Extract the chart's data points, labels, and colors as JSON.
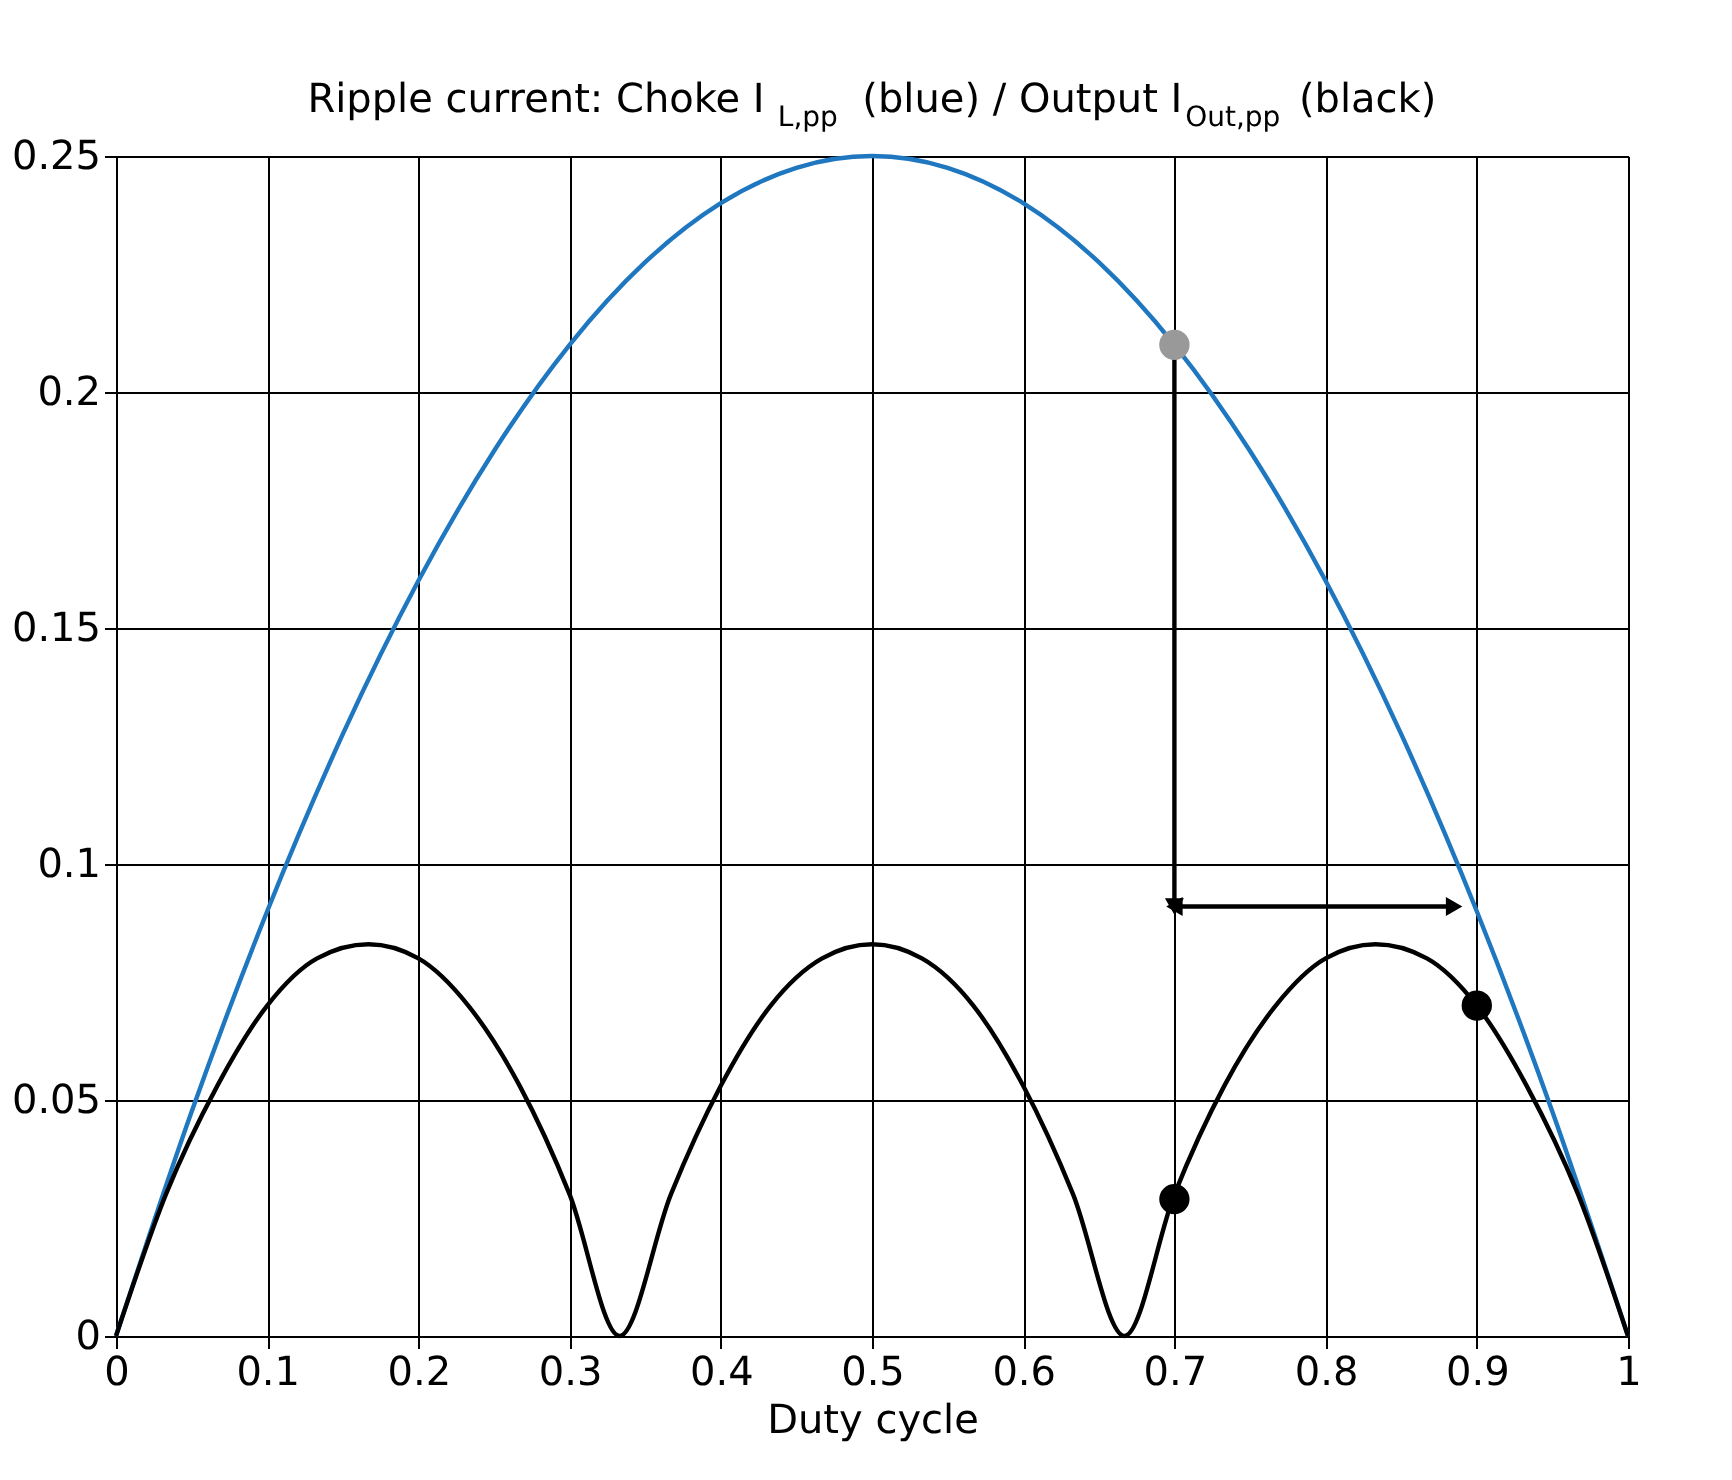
{
  "chart_data": {
    "type": "line",
    "title": "Ripple current: Choke I$_{L,pp}$ (blue) / Output I$_{Out,pp}$ (black)",
    "xlabel": "Duty cycle",
    "xlim": [
      0,
      1
    ],
    "xticks": [
      0,
      0.1,
      0.2,
      0.3,
      0.4,
      0.5,
      0.6,
      0.7,
      0.8,
      0.9,
      1
    ],
    "ylim": [
      0,
      0.25
    ],
    "yticks": [
      0,
      0.05,
      0.1,
      0.15,
      0.2,
      0.25
    ],
    "grid": true,
    "series": [
      {
        "color": "#1f77c0",
        "x": [
          0,
          0.05,
          0.1,
          0.15,
          0.2,
          0.25,
          0.3,
          0.35,
          0.4,
          0.45,
          0.5,
          0.55,
          0.6,
          0.65,
          0.7,
          0.75,
          0.8,
          0.85,
          0.9,
          0.95,
          1
        ],
        "values": [
          0,
          0.0475,
          0.09,
          0.1275,
          0.16,
          0.1875,
          0.21,
          0.2275,
          0.24,
          0.2475,
          0.25,
          0.2475,
          0.24,
          0.2275,
          0.21,
          0.1875,
          0.16,
          0.1275,
          0.09,
          0.0475,
          0
        ]
      },
      {
        "color": "#000000",
        "x": [
          0,
          0.033,
          0.067,
          0.1,
          0.133,
          0.167,
          0.2,
          0.233,
          0.267,
          0.3,
          0.333,
          0.367,
          0.4,
          0.433,
          0.467,
          0.5,
          0.533,
          0.567,
          0.6,
          0.633,
          0.667,
          0.7,
          0.733,
          0.767,
          0.8,
          0.833,
          0.867,
          0.9,
          0.933,
          0.967,
          1
        ],
        "values": [
          0,
          0.03,
          0.053,
          0.07,
          0.08,
          0.083,
          0.08,
          0.07,
          0.053,
          0.03,
          0,
          0.03,
          0.053,
          0.07,
          0.08,
          0.083,
          0.08,
          0.07,
          0.053,
          0.03,
          0,
          0.03,
          0.053,
          0.07,
          0.08,
          0.083,
          0.08,
          0.07,
          0.053,
          0.03,
          0
        ]
      },
      {
        "color": "#000000",
        "marker": "triangle",
        "x": [
          0.7,
          0.7
        ],
        "values": [
          0.21,
          0.091
        ]
      },
      {
        "color": "#000000",
        "marker": "triangle",
        "x": [
          0.7,
          0.885
        ],
        "values": [
          0.091,
          0.091
        ]
      },
      {
        "type": "scatter",
        "marker": "circle",
        "colors": [
          "#999999",
          "#000000",
          "#000000"
        ],
        "x": [
          0.7,
          0.7,
          0.9
        ],
        "values": [
          0.21,
          0.029,
          0.07
        ]
      }
    ]
  }
}
